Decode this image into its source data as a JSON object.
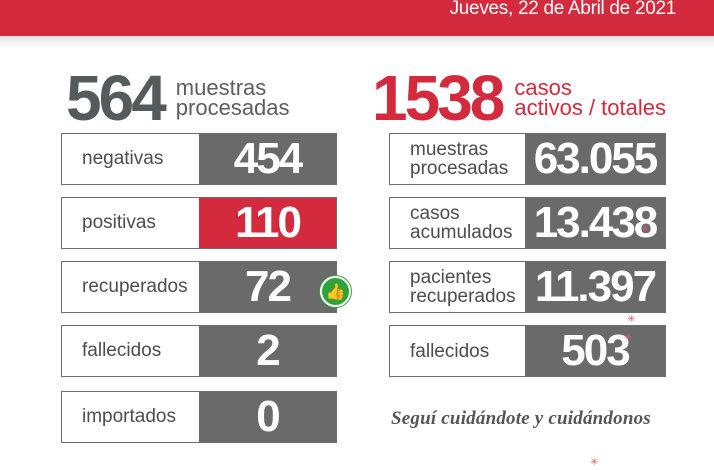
{
  "banner": {
    "date": "Jueves, 22 de Abril de 2021"
  },
  "left": {
    "total": "564",
    "total_label_line1": "muestras",
    "total_label_line2": "procesadas",
    "rows": [
      {
        "label": "negativas",
        "value": "454"
      },
      {
        "label": "positivas",
        "value": "110"
      },
      {
        "label": "recuperados",
        "value": "72"
      },
      {
        "label": "fallecidos",
        "value": "2"
      },
      {
        "label": "importados",
        "value": "0"
      }
    ]
  },
  "right": {
    "total": "1538",
    "total_label_line1": "casos",
    "total_label_line2": "activos / totales",
    "rows": [
      {
        "label_line1": "muestras",
        "label_line2": "procesadas",
        "value": "63.055"
      },
      {
        "label_line1": "casos",
        "label_line2": "acumulados",
        "value": "13.438"
      },
      {
        "label_line1": "pacientes",
        "label_line2": "recuperados",
        "value": "11.397"
      },
      {
        "label_line1": "fallecidos",
        "label_line2": "",
        "value": "503"
      }
    ]
  },
  "tagline": "Seguí cuidándote y cuidándonos",
  "icons": {
    "recovered": "thumbs-up-icon"
  },
  "colors": {
    "brand_red": "#d32a3d",
    "value_gray": "#6a6a6a",
    "text_gray": "#555a5c",
    "thumb_green": "#2fa33a"
  }
}
